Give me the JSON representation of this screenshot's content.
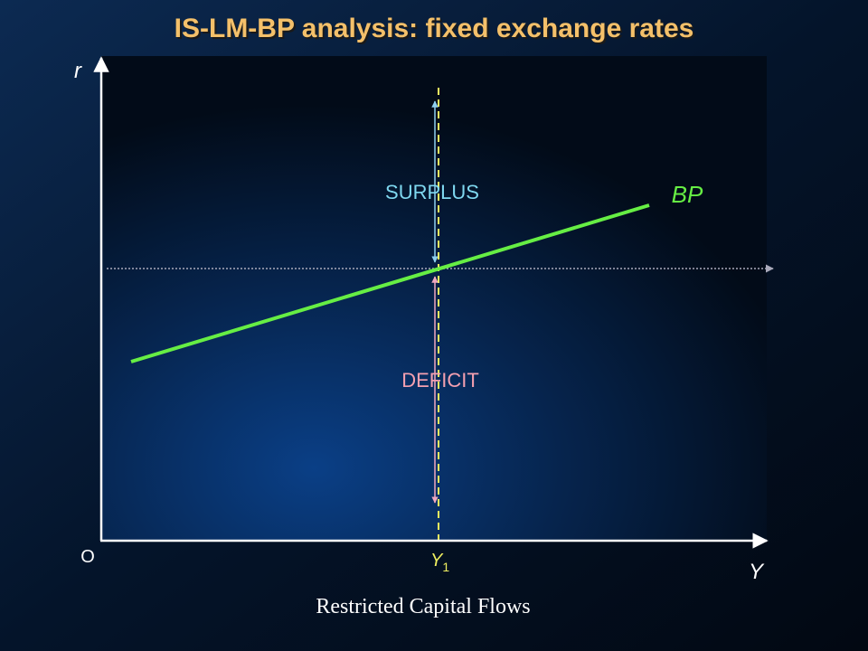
{
  "title": "IS-LM-BP analysis: fixed exchange rates",
  "axes": {
    "y_label": "r",
    "x_label": "Y",
    "origin": "O"
  },
  "marker": {
    "label": "Y",
    "subscript": "1"
  },
  "regions": {
    "upper": "SURPLUS",
    "lower": "DEFICIT"
  },
  "curve": {
    "label": "BP"
  },
  "caption": "Restricted Capital Flows"
}
